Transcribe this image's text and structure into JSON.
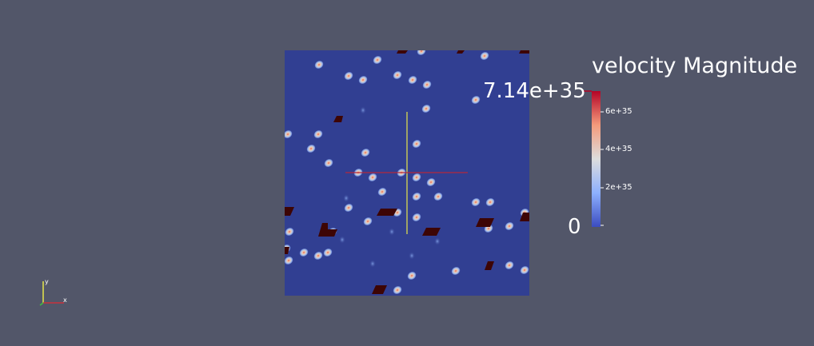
{
  "colorbar": {
    "title": "velocity Magnitude",
    "max_label": "7.14e+35",
    "min_label": "0",
    "ticks": [
      "6e+35",
      "4e+35",
      "2e+35"
    ],
    "max_value": 7.14e+35,
    "min_value": 0,
    "colors": [
      "#3b4cc0",
      "#8db0fe",
      "#dddddd",
      "#f49a7b",
      "#b40426"
    ]
  },
  "axes_triad": {
    "x_label": "x",
    "y_label": "y"
  },
  "render": {
    "background_color": "#525669",
    "field_color": "#313f92",
    "obstacle_color": "#3d0505",
    "probe_line_vertical_color": "#e6e64a",
    "probe_line_horizontal_color": "#b4283c"
  }
}
